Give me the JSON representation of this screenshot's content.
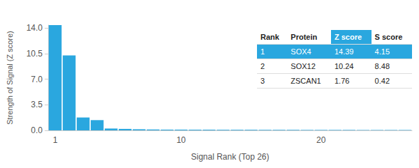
{
  "chart_data": {
    "type": "bar",
    "x_label": "Signal Rank (Top 26)",
    "y_label": "Strength of Signal (Z score)",
    "categories": [
      "1",
      null,
      null,
      null,
      null,
      null,
      null,
      null,
      null,
      "10",
      null,
      null,
      null,
      null,
      null,
      null,
      null,
      null,
      null,
      "20",
      null,
      null,
      null,
      null,
      null,
      null
    ],
    "values": [
      14.39,
      10.24,
      1.76,
      1.4,
      0.25,
      0.2,
      0.15,
      0.12,
      0.1,
      0.1,
      0.09,
      0.09,
      0.08,
      0.08,
      0.08,
      0.07,
      0.07,
      0.07,
      0.06,
      0.06,
      0.06,
      0.06,
      0.05,
      0.05,
      0.05,
      0.05
    ],
    "color": "#2aa7df",
    "ylim": [
      0,
      14.4
    ],
    "yticks": [
      {
        "value": 0,
        "label": "0.0"
      },
      {
        "value": 3.5,
        "label": "3.5"
      },
      {
        "value": 7,
        "label": "7.0"
      },
      {
        "value": 10.5,
        "label": "10.5"
      },
      {
        "value": 14,
        "label": "14.0"
      }
    ],
    "grid": false,
    "table": {
      "columns": [
        "Rank",
        "Protein",
        "Z score",
        "S score"
      ],
      "rows": [
        [
          1,
          "SOX4",
          14.39,
          4.15
        ],
        [
          2,
          "SOX12",
          10.24,
          8.48
        ],
        [
          3,
          "ZSCAN1",
          1.76,
          0.42
        ]
      ]
    }
  }
}
